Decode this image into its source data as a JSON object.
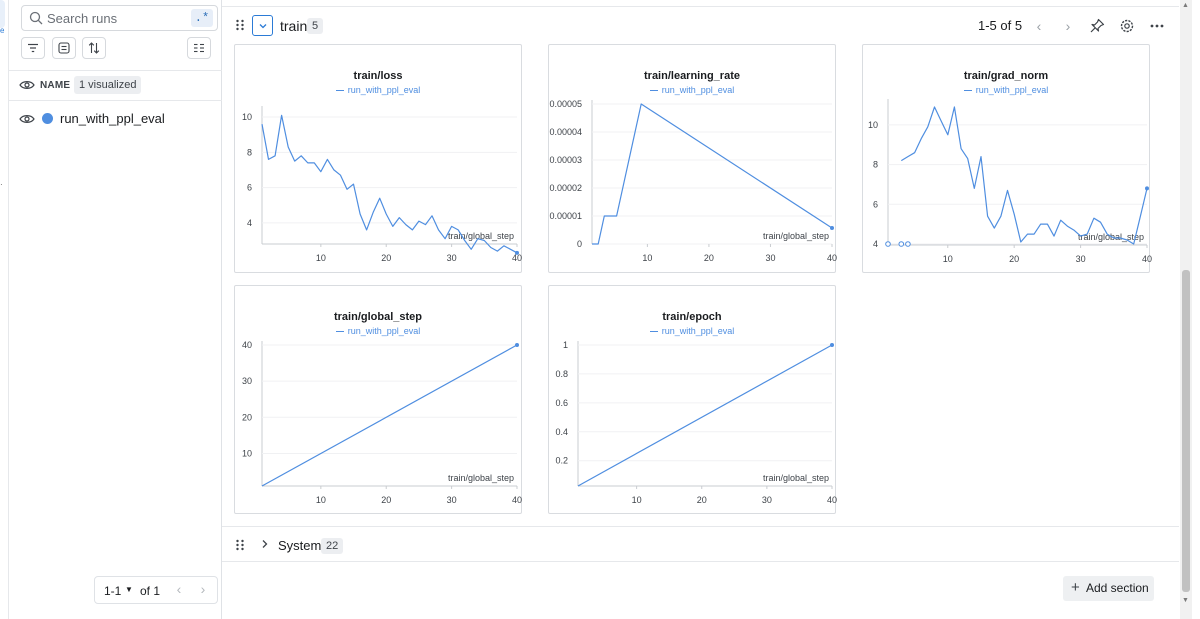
{
  "sidebar": {
    "search_placeholder": "Search runs",
    "regex_label": ".*",
    "header_label": "NAME",
    "visualized_badge": "1 visualized",
    "runs": [
      {
        "name": "run_with_ppl_eval",
        "color": "#4f8ee0"
      }
    ],
    "pager": {
      "range": "1-1",
      "of": "of 1"
    },
    "tool_icons": [
      "filter-icon",
      "group-icon",
      "sort-icon",
      "columns-icon"
    ]
  },
  "section": {
    "title": "train",
    "count": "5",
    "pager_text": "1-5 of 5",
    "icons": [
      "prev-page-icon",
      "next-page-icon",
      "pin-icon",
      "settings-icon",
      "more-icon"
    ]
  },
  "system_section": {
    "title": "System",
    "count": "22"
  },
  "add_section_label": "Add section",
  "accent_color": "#2b7bd6",
  "series_color": "#4f8ee0",
  "chart_data": [
    {
      "type": "line",
      "title": "train/loss",
      "legend": "run_with_ppl_eval",
      "xlabel": "train/global_step",
      "x_ticks": [
        10,
        20,
        30,
        40
      ],
      "y_ticks": [
        4,
        6,
        8,
        10
      ],
      "xlim": [
        1,
        40
      ],
      "ylim": [
        2.8,
        10.4
      ],
      "series": [
        {
          "name": "run_with_ppl_eval",
          "x": [
            1,
            2,
            3,
            4,
            5,
            6,
            7,
            8,
            9,
            10,
            11,
            12,
            13,
            14,
            15,
            16,
            17,
            18,
            19,
            20,
            21,
            22,
            23,
            24,
            25,
            26,
            27,
            28,
            29,
            30,
            31,
            32,
            33,
            34,
            35,
            36,
            37,
            38,
            39,
            40
          ],
          "y": [
            9.6,
            7.6,
            7.8,
            10.1,
            8.3,
            7.5,
            7.8,
            7.4,
            7.4,
            6.9,
            7.6,
            7.0,
            6.7,
            5.9,
            6.2,
            4.5,
            3.6,
            4.6,
            5.4,
            4.5,
            3.8,
            4.3,
            3.9,
            3.6,
            4.1,
            3.9,
            4.4,
            3.6,
            3.1,
            3.8,
            3.6,
            3.0,
            2.5,
            3.1,
            3.0,
            2.6,
            2.4,
            2.7,
            2.5,
            2.3
          ]
        }
      ]
    },
    {
      "type": "line",
      "title": "train/learning_rate",
      "legend": "run_with_ppl_eval",
      "xlabel": "train/global_step",
      "x_ticks": [
        10,
        20,
        30,
        40
      ],
      "y_ticks": [
        0,
        1e-05,
        2e-05,
        3e-05,
        4e-05,
        5e-05
      ],
      "y_tick_labels": [
        "0",
        "0.00001",
        "0.00002",
        "0.00003",
        "0.00004",
        "0.00005"
      ],
      "xlim": [
        1,
        40
      ],
      "ylim": [
        0,
        5e-05
      ],
      "series": [
        {
          "name": "run_with_ppl_eval",
          "x": [
            1,
            2,
            3,
            4,
            5,
            9,
            40
          ],
          "y": [
            0,
            0,
            1e-05,
            1e-05,
            1e-05,
            5e-05,
            5.7e-06
          ]
        }
      ]
    },
    {
      "type": "line",
      "title": "train/grad_norm",
      "legend": "run_with_ppl_eval",
      "xlabel": "train/global_step",
      "x_ticks": [
        10,
        20,
        30,
        40
      ],
      "y_ticks": [
        4,
        6,
        8,
        10
      ],
      "xlim": [
        1,
        40
      ],
      "ylim": [
        3.95,
        11.1
      ],
      "isolated_points": [
        {
          "x": 1,
          "y": 4
        },
        {
          "x": 3,
          "y": 4
        },
        {
          "x": 4,
          "y": 4
        }
      ],
      "series": [
        {
          "name": "run_with_ppl_eval",
          "x": [
            3,
            4,
            5,
            6,
            7,
            8,
            9,
            10,
            11,
            12,
            13,
            14,
            15,
            16,
            17,
            18,
            19,
            20,
            21,
            22,
            23,
            24,
            25,
            26,
            27,
            28,
            29,
            30,
            31,
            32,
            33,
            34,
            35,
            36,
            37,
            38,
            39,
            40
          ],
          "y": [
            8.2,
            8.4,
            8.6,
            9.3,
            9.9,
            10.9,
            10.2,
            9.5,
            10.9,
            8.8,
            8.3,
            6.8,
            8.4,
            5.4,
            4.8,
            5.4,
            6.7,
            5.5,
            4.1,
            4.5,
            4.5,
            5.0,
            5.0,
            4.4,
            5.2,
            4.9,
            4.7,
            4.4,
            4.5,
            5.3,
            5.1,
            4.5,
            4.3,
            4.3,
            4.2,
            4.0,
            5.4,
            6.8
          ]
        }
      ]
    },
    {
      "type": "line",
      "title": "train/global_step",
      "legend": "run_with_ppl_eval",
      "xlabel": "train/global_step",
      "x_ticks": [
        10,
        20,
        30,
        40
      ],
      "y_ticks": [
        10,
        20,
        30,
        40
      ],
      "xlim": [
        1,
        40
      ],
      "ylim": [
        1,
        40
      ],
      "series": [
        {
          "name": "run_with_ppl_eval",
          "x": [
            1,
            40
          ],
          "y": [
            1,
            40
          ]
        }
      ]
    },
    {
      "type": "line",
      "title": "train/epoch",
      "legend": "run_with_ppl_eval",
      "xlabel": "train/global_step",
      "x_ticks": [
        10,
        20,
        30,
        40
      ],
      "y_ticks": [
        0.2,
        0.4,
        0.6,
        0.8,
        1
      ],
      "xlim": [
        1,
        40
      ],
      "ylim": [
        0.025,
        1
      ],
      "series": [
        {
          "name": "run_with_ppl_eval",
          "x": [
            1,
            40
          ],
          "y": [
            0.025,
            1
          ]
        }
      ]
    }
  ]
}
